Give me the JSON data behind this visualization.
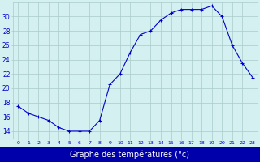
{
  "hours": [
    0,
    1,
    2,
    3,
    4,
    5,
    6,
    7,
    8,
    9,
    10,
    11,
    12,
    13,
    14,
    15,
    16,
    17,
    18,
    19,
    20,
    21,
    22,
    23
  ],
  "temperatures": [
    17.5,
    16.5,
    16.0,
    15.5,
    14.5,
    14.0,
    14.0,
    14.0,
    15.5,
    20.5,
    22.0,
    25.0,
    27.5,
    28.0,
    29.5,
    30.5,
    31.0,
    31.0,
    31.0,
    31.5,
    30.0,
    26.0,
    23.5,
    21.5
  ],
  "line_color": "#0000cc",
  "marker": "+",
  "bg_color": "#d4f0f0",
  "grid_color": "#aacccc",
  "ylabel_ticks": [
    14,
    16,
    18,
    20,
    22,
    24,
    26,
    28,
    30
  ],
  "ylim": [
    13.0,
    32.0
  ],
  "xlim": [
    -0.5,
    23.5
  ],
  "tick_color": "#0000cc",
  "axis_label_color": "#ffffff",
  "bottom_bar_color": "#0000aa",
  "xlabel": "Graphe des températures (°c)"
}
